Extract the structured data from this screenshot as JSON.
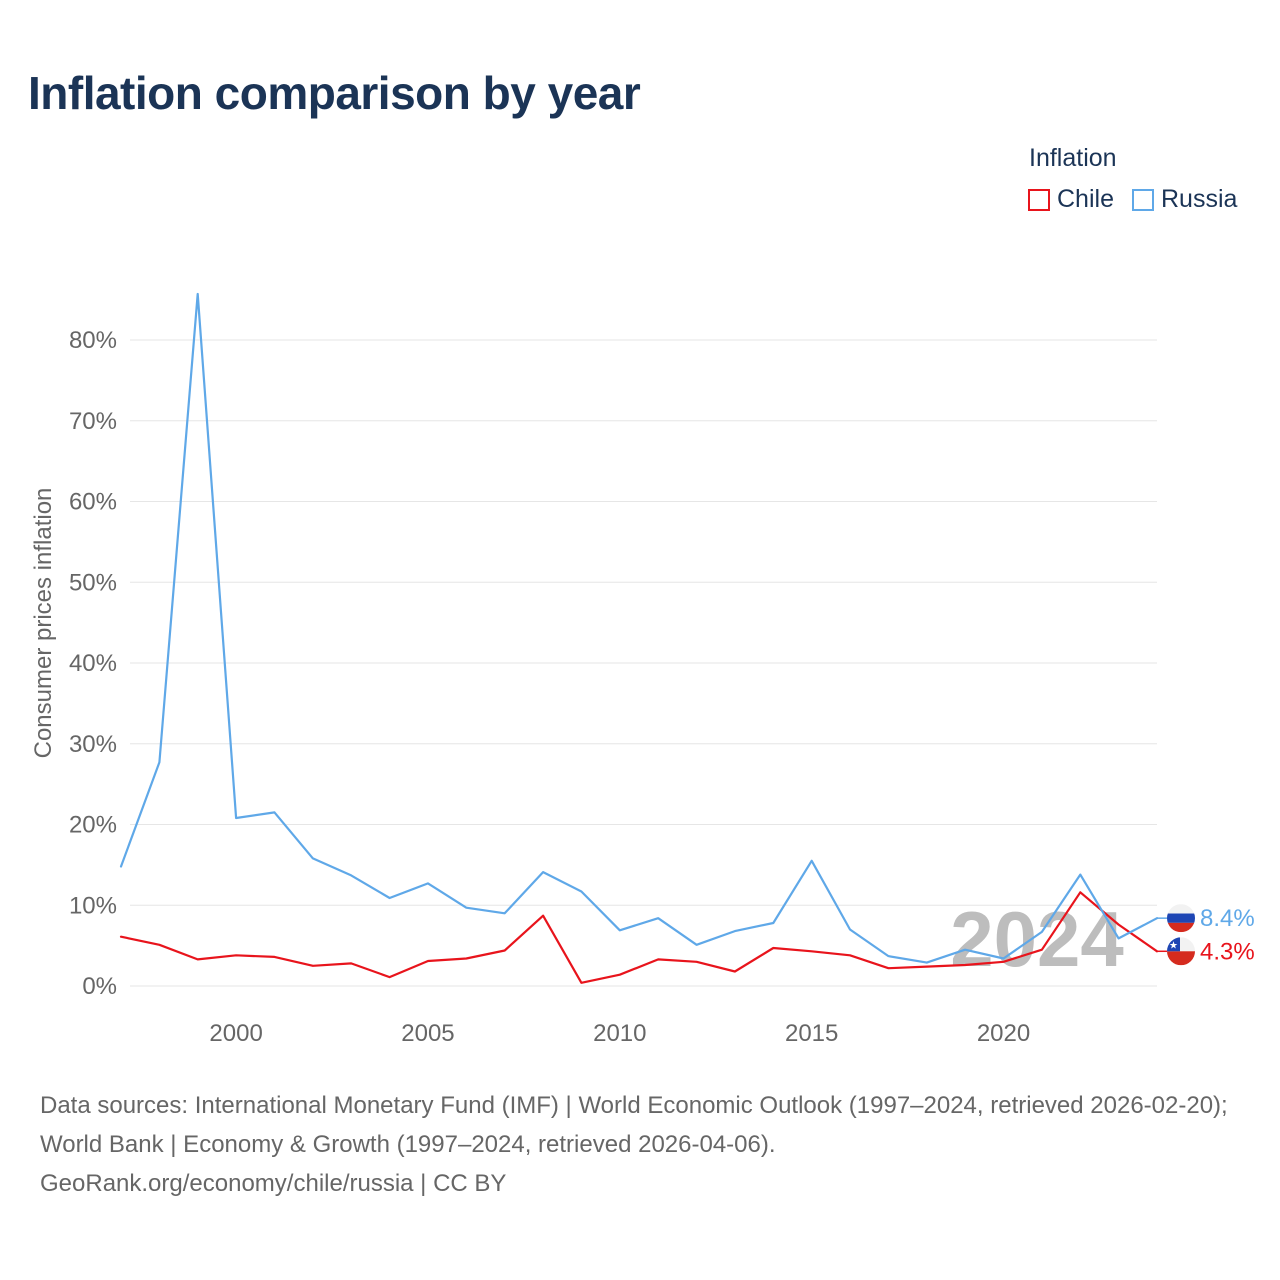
{
  "title": "Inflation comparison by year",
  "legend": {
    "title": "Inflation",
    "items": [
      {
        "label": "Chile",
        "color": "#e8141c"
      },
      {
        "label": "Russia",
        "color": "#5fa8e8"
      }
    ]
  },
  "chart_data": {
    "type": "line",
    "title": "Inflation comparison by year",
    "ylabel": "Consumer prices inflation",
    "xlabel": "",
    "x": [
      1997,
      1998,
      1999,
      2000,
      2001,
      2002,
      2003,
      2004,
      2005,
      2006,
      2007,
      2008,
      2009,
      2010,
      2011,
      2012,
      2013,
      2014,
      2015,
      2016,
      2017,
      2018,
      2019,
      2020,
      2021,
      2022,
      2023,
      2024
    ],
    "xlim": [
      1997,
      2024
    ],
    "xticks": [
      2000,
      2005,
      2010,
      2015,
      2020
    ],
    "ylim": [
      0,
      80
    ],
    "yticks": [
      0,
      10,
      20,
      30,
      40,
      50,
      60,
      70,
      80
    ],
    "ytick_labels": [
      "0%",
      "10%",
      "20%",
      "30%",
      "40%",
      "50%",
      "60%",
      "70%",
      "80%"
    ],
    "grid": true,
    "current_year": "2024",
    "series": [
      {
        "name": "Chile",
        "color": "#e8141c",
        "values": [
          6.1,
          5.1,
          3.3,
          3.8,
          3.6,
          2.5,
          2.8,
          1.1,
          3.1,
          3.4,
          4.4,
          8.7,
          0.4,
          1.4,
          3.3,
          3.0,
          1.8,
          4.7,
          4.3,
          3.8,
          2.2,
          2.4,
          2.6,
          3.0,
          4.5,
          11.6,
          7.6,
          4.3
        ],
        "end_label": "4.3%"
      },
      {
        "name": "Russia",
        "color": "#5fa8e8",
        "values": [
          14.8,
          27.7,
          85.7,
          20.8,
          21.5,
          15.8,
          13.7,
          10.9,
          12.7,
          9.7,
          9.0,
          14.1,
          11.7,
          6.9,
          8.4,
          5.1,
          6.8,
          7.8,
          15.5,
          7.0,
          3.7,
          2.9,
          4.5,
          3.4,
          6.7,
          13.8,
          5.9,
          8.4
        ],
        "end_label": "8.4%"
      }
    ]
  },
  "footer": {
    "sources": "Data sources: International Monetary Fund (IMF) | World Economic Outlook (1997–2024, retrieved 2026-02-20); World Bank | Economy & Growth (1997–2024, retrieved 2026-04-06).",
    "credit": "GeoRank.org/economy/chile/russia | CC BY"
  }
}
